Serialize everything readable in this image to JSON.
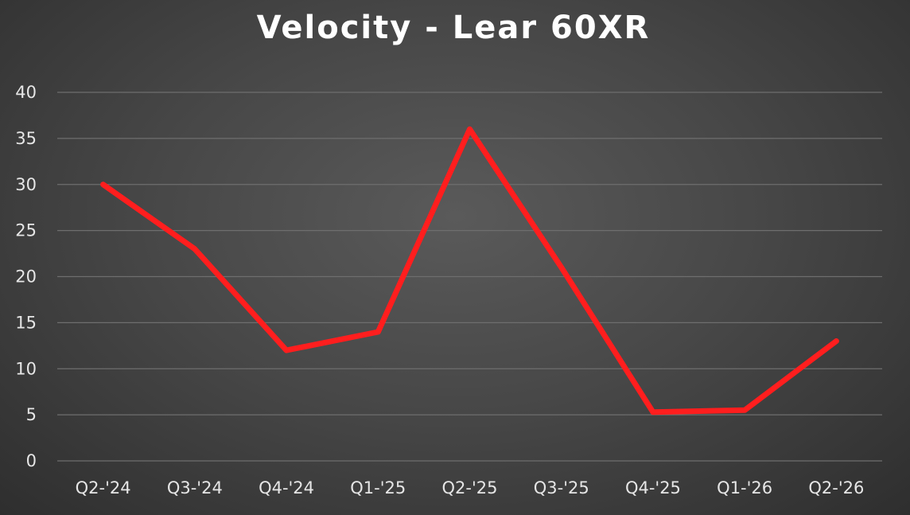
{
  "chart_data": {
    "type": "line",
    "title": "Velocity - Lear 60XR",
    "xlabel": "",
    "ylabel": "",
    "categories": [
      "Q2-'24",
      "Q3-'24",
      "Q4-'24",
      "Q1-'25",
      "Q2-'25",
      "Q3-'25",
      "Q4-'25",
      "Q1-'26",
      "Q2-'26"
    ],
    "series": [
      {
        "values": [
          30,
          23,
          12,
          14,
          36,
          21,
          5.3,
          5.5,
          13
        ]
      }
    ],
    "ylim": [
      0,
      40
    ],
    "yticks": [
      "0",
      "5",
      "10",
      "15",
      "20",
      "25",
      "30",
      "35",
      "40"
    ],
    "grid": true,
    "legend": "none",
    "colors": {
      "series": "#ff1e1e",
      "gridline": "#6e6e6e",
      "text": "#e6e6e6",
      "title": "#ffffff"
    }
  }
}
